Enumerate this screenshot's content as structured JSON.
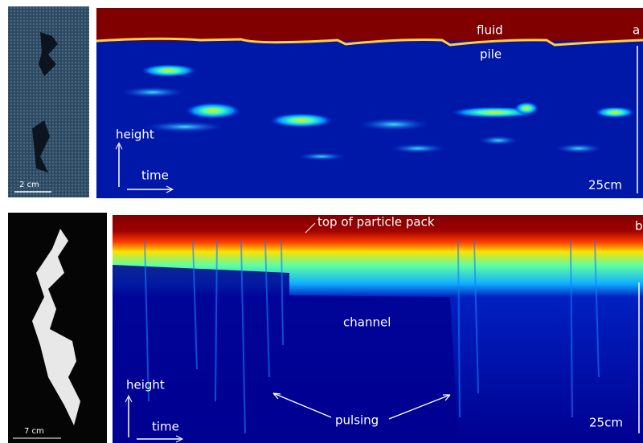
{
  "panel_a": {
    "label": "a",
    "photo_scale": "2 cm",
    "top_label": "fluid",
    "mid_label": "pile",
    "y_axis": "height",
    "x_axis": "time",
    "scale_bar": "25cm"
  },
  "panel_b": {
    "label": "b",
    "photo_scale": "7 cm",
    "top_label": "top of particle pack",
    "mid_label": "channel",
    "y_axis": "height",
    "x_axis": "time",
    "annotation": "pulsing",
    "scale_bar": "25cm"
  }
}
